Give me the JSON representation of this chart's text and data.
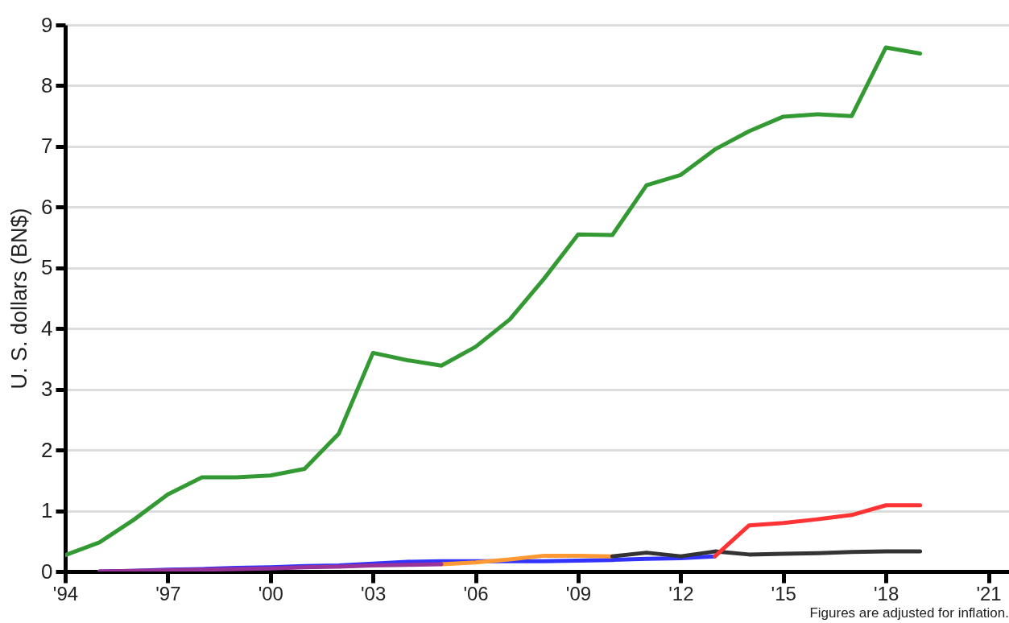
{
  "chart_data": {
    "type": "line",
    "ylabel": "U. S. dollars (BN$)",
    "xlim": [
      1994,
      2021.6
    ],
    "xticks": [
      {
        "value": 1994,
        "label": "'94"
      },
      {
        "value": 1997,
        "label": "'97"
      },
      {
        "value": 2000,
        "label": "'00"
      },
      {
        "value": 2003,
        "label": "'03"
      },
      {
        "value": 2006,
        "label": "'06"
      },
      {
        "value": 2009,
        "label": "'09"
      },
      {
        "value": 2012,
        "label": "'12"
      },
      {
        "value": 2015,
        "label": "'15"
      },
      {
        "value": 2018,
        "label": "'18"
      },
      {
        "value": 2021,
        "label": "'21"
      }
    ],
    "ylim": [
      0,
      9
    ],
    "yticks": [
      0,
      1,
      2,
      3,
      4,
      5,
      6,
      7,
      8,
      9
    ],
    "grid": "y",
    "annotations": [
      "Figures are adjusted for inflation."
    ],
    "series": [
      {
        "color": "#339933",
        "x": [
          1994,
          1995,
          1996,
          1997,
          1998,
          1999,
          2000,
          2001,
          2002,
          2003,
          2004,
          2005,
          2006,
          2007,
          2008,
          2009,
          2010,
          2011,
          2012,
          2013,
          2014,
          2015,
          2016,
          2017,
          2018,
          2019
        ],
        "values": [
          0.27,
          0.48,
          0.85,
          1.27,
          1.55,
          1.55,
          1.58,
          1.69,
          2.27,
          3.6,
          3.48,
          3.39,
          3.7,
          4.15,
          4.82,
          5.55,
          5.54,
          6.36,
          6.53,
          6.95,
          7.25,
          7.49,
          7.53,
          7.5,
          8.63,
          8.53
        ]
      },
      {
        "color": "#3333ff",
        "x": [
          1995,
          1996,
          1997,
          1998,
          1999,
          2000,
          2001,
          2002,
          2003,
          2004,
          2005,
          2006,
          2007,
          2008,
          2009,
          2010,
          2011,
          2012,
          2013
        ],
        "values": [
          0.0,
          0.01,
          0.03,
          0.04,
          0.06,
          0.07,
          0.09,
          0.1,
          0.13,
          0.16,
          0.17,
          0.17,
          0.17,
          0.17,
          0.18,
          0.19,
          0.21,
          0.22,
          0.25
        ]
      },
      {
        "color": "#ff9933",
        "x": [
          2005,
          2006,
          2007,
          2008,
          2009,
          2010
        ],
        "values": [
          0.12,
          0.15,
          0.2,
          0.26,
          0.26,
          0.25
        ]
      },
      {
        "color": "#333333",
        "x": [
          2010,
          2011,
          2012,
          2013,
          2014,
          2015,
          2016,
          2017,
          2018,
          2019
        ],
        "values": [
          0.25,
          0.31,
          0.25,
          0.33,
          0.28,
          0.29,
          0.3,
          0.32,
          0.33,
          0.33
        ]
      },
      {
        "color": "#ff3333",
        "x": [
          2013,
          2014,
          2015,
          2016,
          2017,
          2018,
          2019
        ],
        "values": [
          0.25,
          0.76,
          0.8,
          0.86,
          0.93,
          1.09,
          1.09
        ]
      },
      {
        "color": "#993399",
        "x": [
          1995,
          1996,
          1997,
          1998,
          1999,
          2000,
          2001,
          2002,
          2003,
          2004,
          2005
        ],
        "values": [
          0.0,
          0.01,
          0.02,
          0.03,
          0.04,
          0.05,
          0.07,
          0.08,
          0.1,
          0.11,
          0.12
        ]
      }
    ]
  }
}
